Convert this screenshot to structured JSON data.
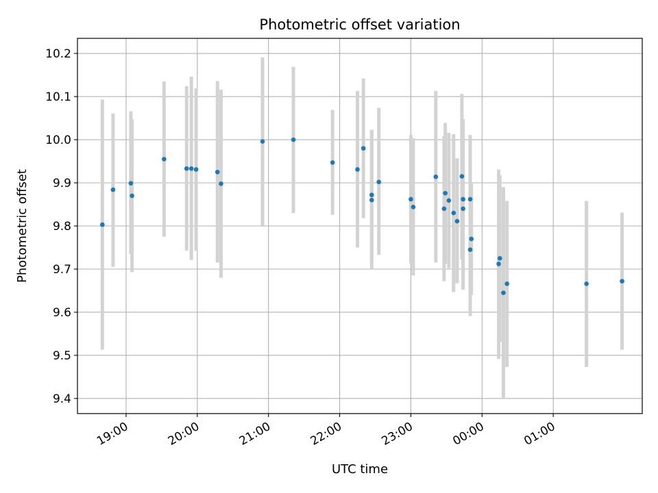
{
  "chart_data": {
    "type": "scatter",
    "title": "Photometric offset variation",
    "xlabel": "UTC time",
    "ylabel": "Photometric offset",
    "x_axis_type": "time",
    "xlim": [
      "18:19",
      "02:15"
    ],
    "ylim": [
      9.365,
      10.235
    ],
    "grid": true,
    "xticks": [
      "19:00",
      "20:00",
      "21:00",
      "22:00",
      "23:00",
      "00:00",
      "01:00"
    ],
    "yticks": [
      "9.4",
      "9.5",
      "9.6",
      "9.7",
      "9.8",
      "9.9",
      "10.0",
      "10.1",
      "10.2"
    ],
    "series": [
      {
        "marker_color": "#1f77b4",
        "errorbar_color": "#d3d3d3",
        "points": [
          {
            "t": "18:40",
            "y": 9.803,
            "lo": 9.513,
            "hi": 10.093
          },
          {
            "t": "18:49",
            "y": 9.884,
            "lo": 9.705,
            "hi": 10.061
          },
          {
            "t": "19:04",
            "y": 9.899,
            "lo": 9.735,
            "hi": 10.066
          },
          {
            "t": "19:05",
            "y": 9.87,
            "lo": 9.693,
            "hi": 10.047
          },
          {
            "t": "19:32",
            "y": 9.955,
            "lo": 9.775,
            "hi": 10.135
          },
          {
            "t": "19:51",
            "y": 9.933,
            "lo": 9.743,
            "hi": 10.124
          },
          {
            "t": "19:55",
            "y": 9.933,
            "lo": 9.721,
            "hi": 10.146
          },
          {
            "t": "19:59",
            "y": 9.931,
            "lo": 9.742,
            "hi": 10.119
          },
          {
            "t": "20:17",
            "y": 9.925,
            "lo": 9.715,
            "hi": 10.136
          },
          {
            "t": "20:20",
            "y": 9.898,
            "lo": 9.68,
            "hi": 10.116
          },
          {
            "t": "20:55",
            "y": 9.996,
            "lo": 9.801,
            "hi": 10.191
          },
          {
            "t": "21:21",
            "y": 10.0,
            "lo": 9.83,
            "hi": 10.169
          },
          {
            "t": "21:54",
            "y": 9.947,
            "lo": 9.826,
            "hi": 10.069
          },
          {
            "t": "22:15",
            "y": 9.931,
            "lo": 9.75,
            "hi": 10.113
          },
          {
            "t": "22:20",
            "y": 9.98,
            "lo": 9.818,
            "hi": 10.142
          },
          {
            "t": "22:27",
            "y": 9.872,
            "lo": 9.72,
            "hi": 10.023
          },
          {
            "t": "22:27",
            "y": 9.86,
            "lo": 9.7,
            "hi": 10.02
          },
          {
            "t": "22:33",
            "y": 9.902,
            "lo": 9.733,
            "hi": 10.074
          },
          {
            "t": "23:00",
            "y": 9.862,
            "lo": 9.713,
            "hi": 10.011
          },
          {
            "t": "23:02",
            "y": 9.844,
            "lo": 9.685,
            "hi": 10.003
          },
          {
            "t": "23:21",
            "y": 9.914,
            "lo": 9.715,
            "hi": 10.113
          },
          {
            "t": "23:28",
            "y": 9.84,
            "lo": 9.672,
            "hi": 10.008
          },
          {
            "t": "23:29",
            "y": 9.876,
            "lo": 9.712,
            "hi": 10.039
          },
          {
            "t": "23:32",
            "y": 9.859,
            "lo": 9.702,
            "hi": 10.016
          },
          {
            "t": "23:36",
            "y": 9.83,
            "lo": 9.647,
            "hi": 10.013
          },
          {
            "t": "23:39",
            "y": 9.811,
            "lo": 9.667,
            "hi": 9.957
          },
          {
            "t": "23:43",
            "y": 9.915,
            "lo": 9.722,
            "hi": 10.106
          },
          {
            "t": "23:44",
            "y": 9.862,
            "lo": 9.676,
            "hi": 10.048
          },
          {
            "t": "23:44",
            "y": 9.84,
            "lo": 9.652,
            "hi": 10.028
          },
          {
            "t": "23:50",
            "y": 9.862,
            "lo": 9.712,
            "hi": 10.011
          },
          {
            "t": "23:51",
            "y": 9.77,
            "lo": 9.64,
            "hi": 9.9
          },
          {
            "t": "23:50",
            "y": 9.745,
            "lo": 9.591,
            "hi": 9.899
          },
          {
            "t": "00:15",
            "y": 9.725,
            "lo": 9.531,
            "hi": 9.918
          },
          {
            "t": "00:14",
            "y": 9.712,
            "lo": 9.492,
            "hi": 9.931
          },
          {
            "t": "00:18",
            "y": 9.645,
            "lo": 9.4,
            "hi": 9.89
          },
          {
            "t": "00:21",
            "y": 9.666,
            "lo": 9.473,
            "hi": 9.858
          },
          {
            "t": "01:28",
            "y": 9.666,
            "lo": 9.473,
            "hi": 9.858
          },
          {
            "t": "01:58",
            "y": 9.672,
            "lo": 9.513,
            "hi": 9.831
          }
        ]
      }
    ]
  }
}
